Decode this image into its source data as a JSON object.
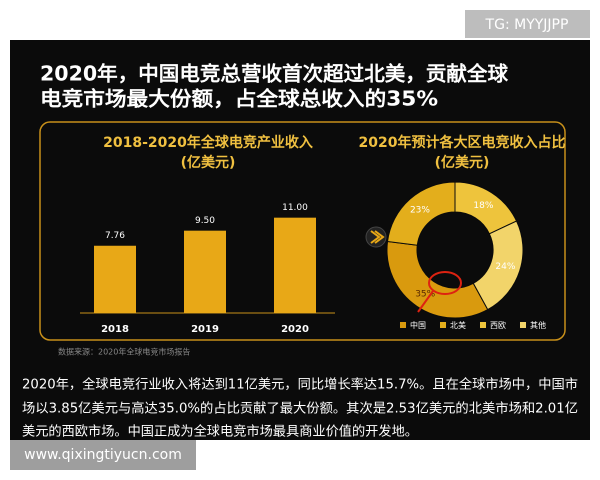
{
  "tag": "TG: MYYJJPP",
  "title": [
    "2020年，中国电竞总营收首次超过北美，贡献全球",
    "电竞市场最大份额，占全球总收入的35%"
  ],
  "chart_data": [
    {
      "type": "bar",
      "title": "2018-2020年全球电竞产业收入",
      "subtitle": "(亿美元)",
      "categories": [
        "2018",
        "2019",
        "2020"
      ],
      "values": [
        7.76,
        9.5,
        11
      ],
      "value_labels": [
        "7.76",
        "9.50",
        "11.00"
      ],
      "color": "#e8a817",
      "ylim": [
        0,
        12
      ]
    },
    {
      "type": "pie",
      "title": "2020年预计各大区电竞收入占比",
      "subtitle": "(亿美元)",
      "categories": [
        "中国",
        "北美",
        "西欧",
        "其他"
      ],
      "values": [
        35,
        23,
        18,
        24
      ],
      "value_labels": [
        "35%",
        "23%",
        "18%",
        "24%"
      ],
      "colors": [
        "#d99a0e",
        "#e3ae1c",
        "#eec43c",
        "#f2d46a"
      ]
    }
  ],
  "source": "数据来源：2020年全球电竞市场报告",
  "paragraph": [
    "2020年，全球电竞行业收入将达到11亿美元，同比增长率达15.7%。且在全球市场中，中国市",
    "场以3.85亿美元与高达35.0%的占比贡献了最大份额。其次是2.53亿美元的北美市场和2.01亿",
    "美元的西欧市场。中国正成为全球电竞市场最具商业价值的开发地。"
  ],
  "watermark": "www.qixingtiyucn.com"
}
